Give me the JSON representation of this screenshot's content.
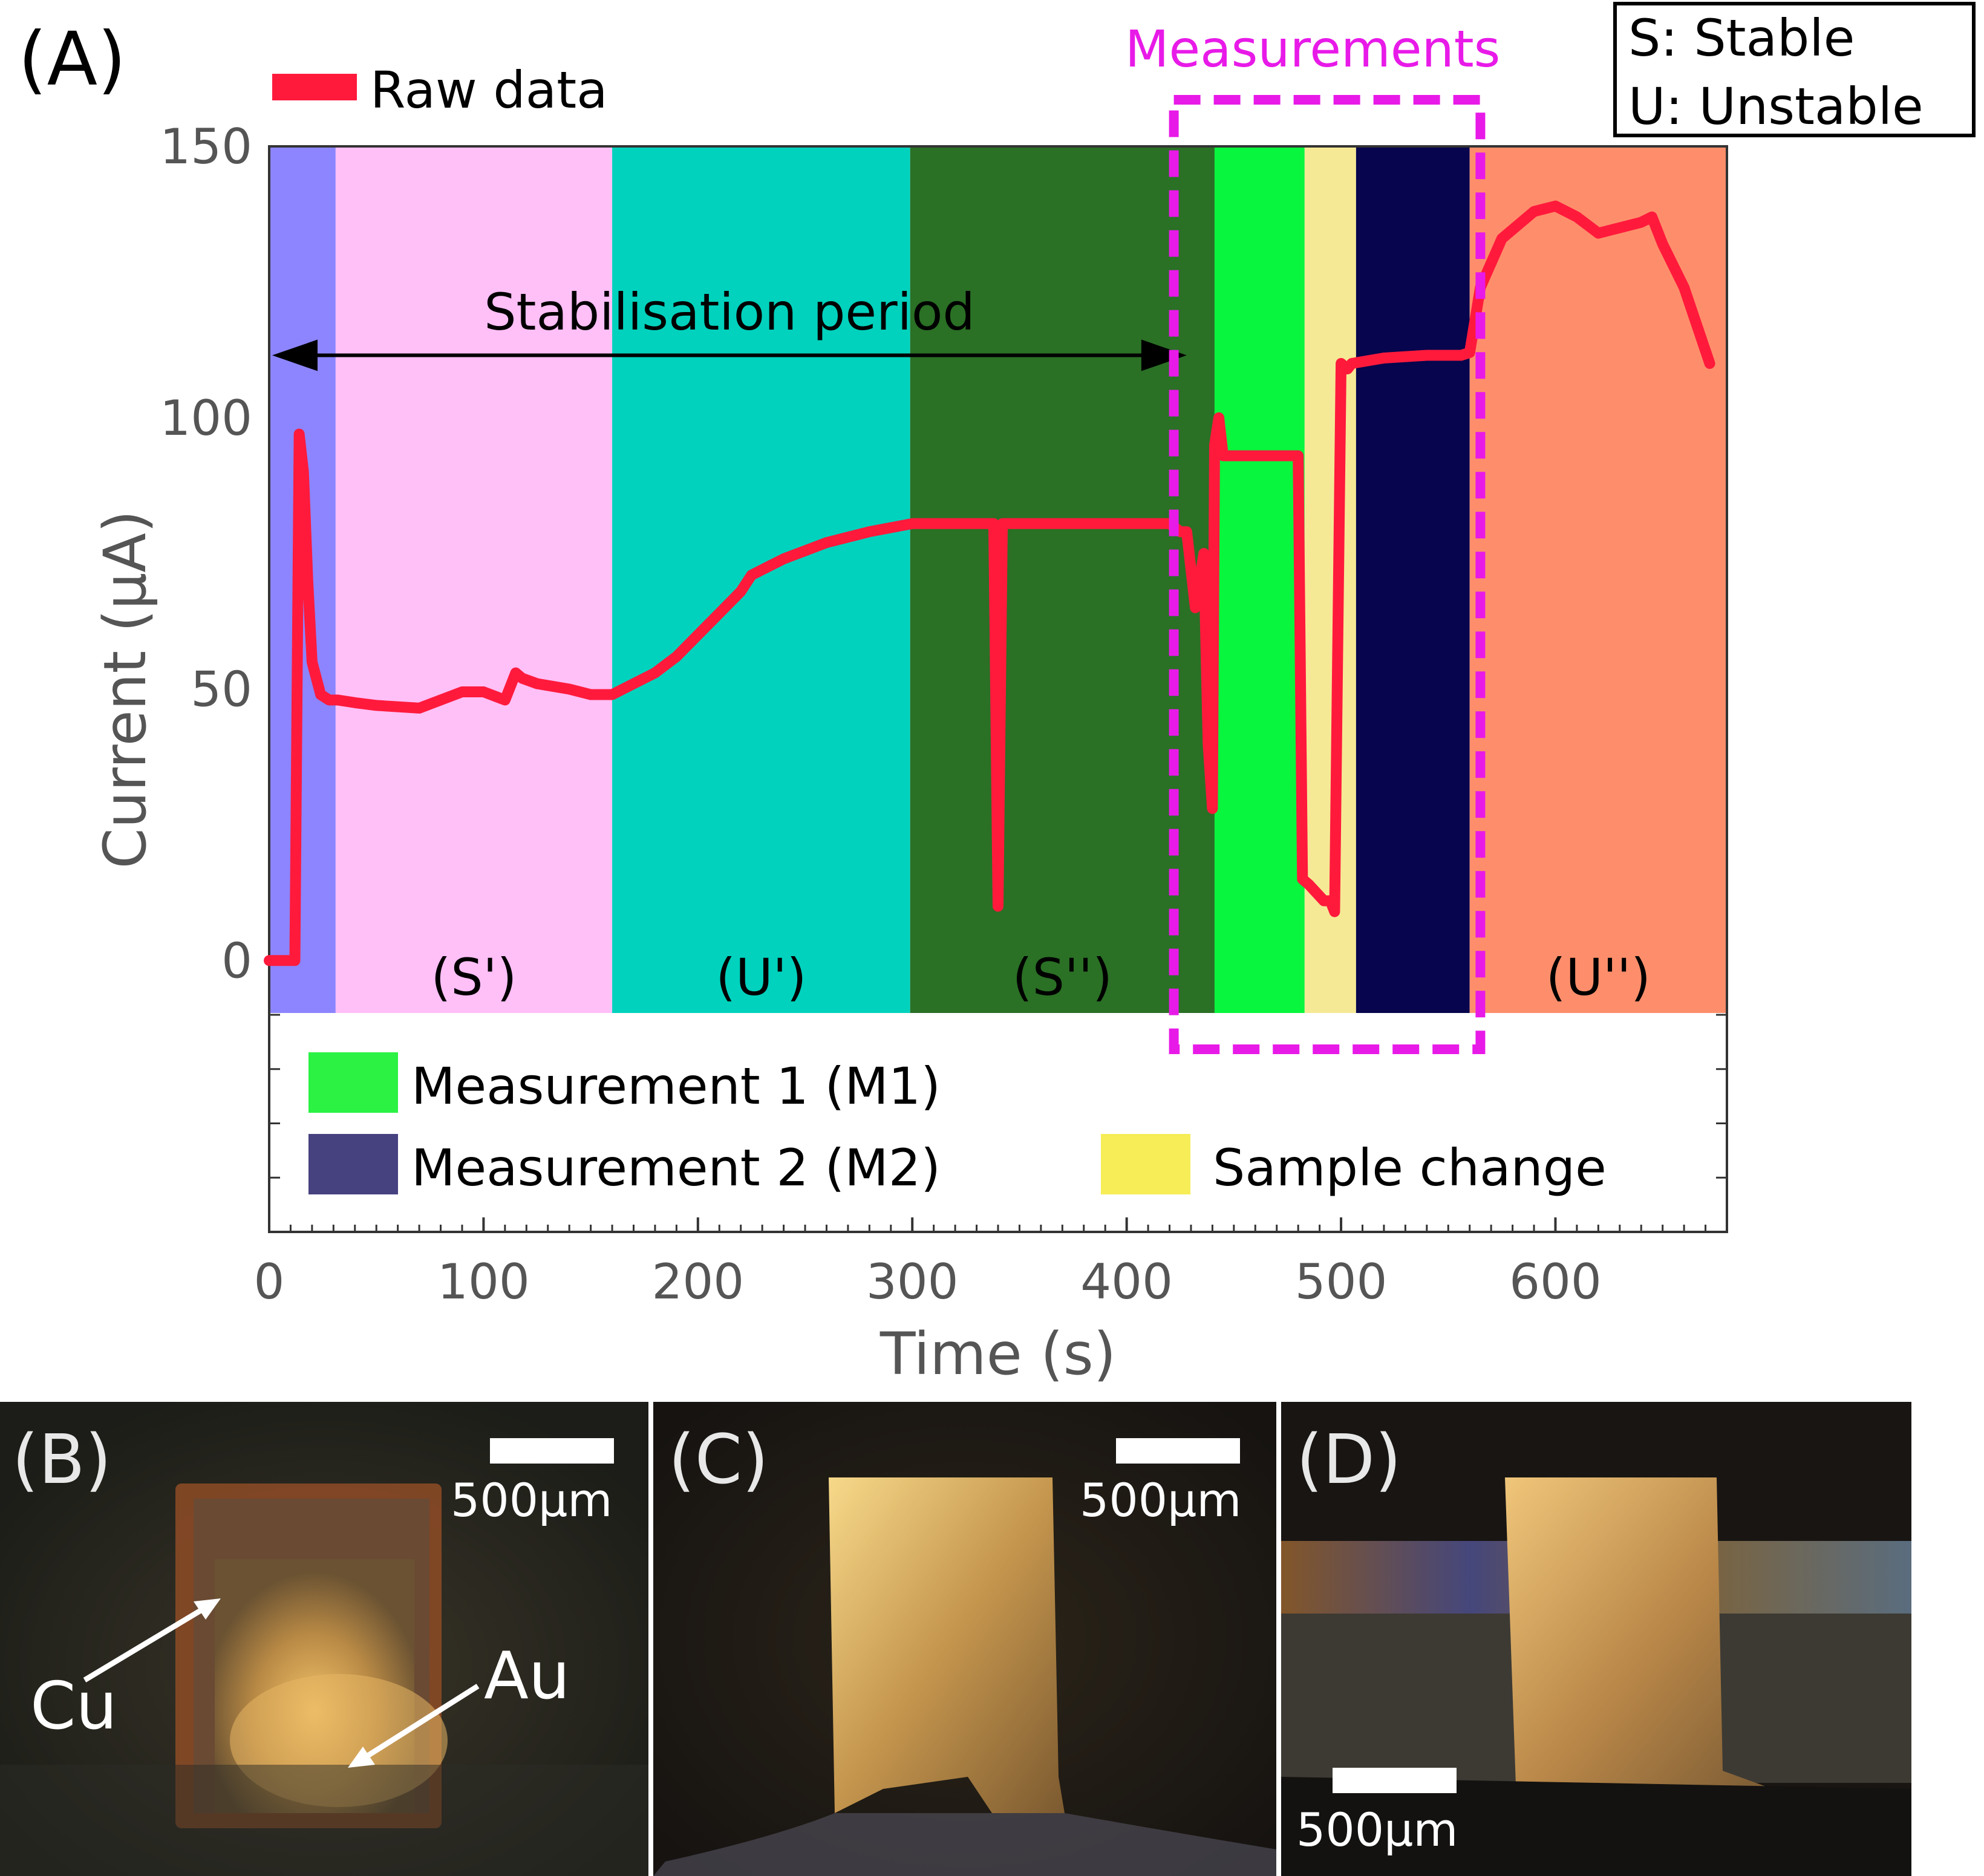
{
  "panel_labels": {
    "a": "(A)",
    "b": "(B)",
    "c": "(C)",
    "d": "(D)"
  },
  "chart_data": {
    "type": "line",
    "xlabel": "Time (s)",
    "ylabel": "Current (μA)",
    "xlim": [
      0,
      680
    ],
    "ylim": [
      -50,
      150
    ],
    "xticks": [
      0,
      100,
      200,
      300,
      400,
      500,
      600
    ],
    "yticks": [
      0,
      50,
      100,
      150
    ],
    "grid": false,
    "legend_top": "Raw data",
    "box_legend": [
      "S: Stable",
      "U: Unstable"
    ],
    "measurements_label": "Measurements",
    "stabilisation_label": "Stabilisation period",
    "stabilisation_range": [
      0,
      428
    ],
    "measurements_box_range": [
      422,
      565
    ],
    "regions": [
      {
        "start": 0,
        "end": 31,
        "color": "#8c85ff",
        "label": ""
      },
      {
        "start": 31,
        "end": 160,
        "color": "#ffbff7",
        "label": "(S')"
      },
      {
        "start": 160,
        "end": 299,
        "color": "#00d2bd",
        "label": "(U')"
      },
      {
        "start": 299,
        "end": 441,
        "color": "#2a7025",
        "label": "(S'')"
      },
      {
        "start": 441,
        "end": 483,
        "color": "#08f63d",
        "label": ""
      },
      {
        "start": 483,
        "end": 507,
        "color": "#f6e996",
        "label": ""
      },
      {
        "start": 507,
        "end": 560,
        "color": "#06054d",
        "label": ""
      },
      {
        "start": 560,
        "end": 680,
        "color": "#fe8e6b",
        "label": "(U'')"
      }
    ],
    "legend_bottom": [
      {
        "label": "Measurement 1 (M1)",
        "color": "#2cf244"
      },
      {
        "label": "Measurement 2 (M2)",
        "color": "#46417f"
      },
      {
        "label": "Sample change",
        "color": "#f6ed57"
      }
    ],
    "series": [
      {
        "name": "Raw data",
        "color": "#ff1a3c",
        "x": [
          0,
          12,
          14,
          16,
          18,
          20,
          24,
          28,
          32,
          40,
          50,
          70,
          90,
          100,
          110,
          115,
          118,
          125,
          140,
          150,
          160,
          170,
          180,
          190,
          200,
          210,
          220,
          225,
          230,
          240,
          260,
          280,
          300,
          320,
          338,
          340,
          342,
          360,
          400,
          420,
          425,
          428,
          432,
          436,
          438,
          440,
          441,
          443,
          445,
          460,
          475,
          480,
          482,
          485,
          492,
          495,
          497,
          500,
          503,
          505,
          520,
          540,
          556,
          560,
          565,
          575,
          590,
          600,
          610,
          620,
          630,
          640,
          645,
          650,
          660,
          672
        ],
        "y": [
          0,
          0,
          97,
          90,
          70,
          55,
          49,
          48,
          48,
          47.5,
          47,
          46.5,
          49.5,
          49.5,
          48,
          53,
          52,
          51,
          50,
          49,
          49,
          51,
          53,
          56,
          60,
          64,
          68,
          71,
          72,
          74,
          77,
          79,
          80.5,
          80.5,
          80.5,
          10,
          80.5,
          80.5,
          80.5,
          80.5,
          79,
          79,
          65,
          75,
          40,
          28,
          95,
          100,
          93,
          93,
          93,
          93,
          15,
          14,
          11,
          11,
          9,
          110,
          109,
          110,
          111,
          111.5,
          111.5,
          112,
          124,
          133,
          138,
          139,
          137,
          134,
          135,
          136,
          137,
          132,
          124,
          110
        ]
      }
    ]
  },
  "photos": {
    "b": {
      "scale_label": "500μm",
      "annotations": [
        "Cu",
        "Au"
      ]
    },
    "c": {
      "scale_label": "500μm"
    },
    "d": {
      "scale_label": "500μm"
    }
  }
}
